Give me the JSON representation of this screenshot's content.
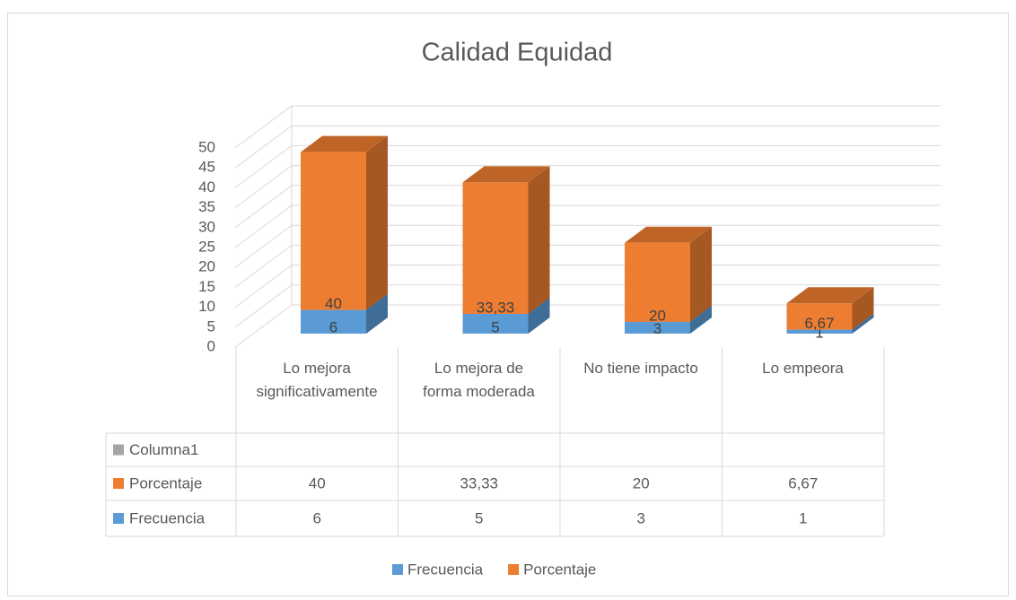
{
  "chart_data": {
    "type": "bar3d_stacked",
    "title": "Calidad Equidad",
    "categories": [
      "Lo mejora significativamente",
      "Lo mejora de forma moderada",
      "No tiene impacto",
      "Lo empeora"
    ],
    "series": [
      {
        "name": "Frecuencia",
        "color": "#5b9bd5",
        "values": [
          6,
          5,
          3,
          1
        ]
      },
      {
        "name": "Porcentaje",
        "color": "#ed7d31",
        "values": [
          40,
          33.33,
          20,
          6.67
        ],
        "value_labels": [
          "40",
          "33,33",
          "20",
          "6,67"
        ]
      },
      {
        "name": "Columna1",
        "color": "#a5a5a5",
        "values": [
          null,
          null,
          null,
          null
        ]
      }
    ],
    "ylim": [
      0,
      50
    ],
    "yticks": [
      0,
      5,
      10,
      15,
      20,
      25,
      30,
      35,
      40,
      45,
      50
    ],
    "grid": true,
    "legend": "bottom",
    "data_table": true
  }
}
